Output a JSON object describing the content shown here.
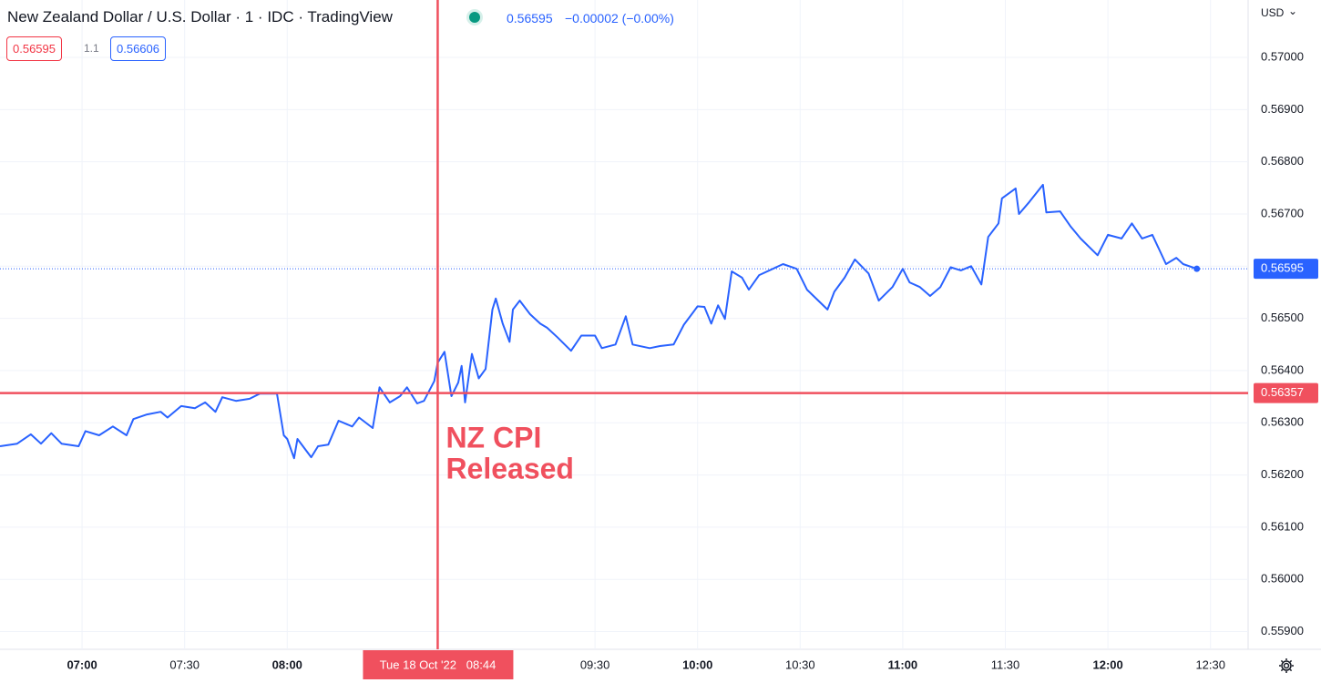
{
  "header": {
    "title": "New Zealand Dollar / U.S. Dollar · 1 · IDC · TradingView",
    "last": 0.56595,
    "change": "−0.00002 (−0.00%)"
  },
  "toolbar": {
    "bid": 0.56595,
    "spread": "1.1",
    "ask": 0.56606,
    "currency": "USD"
  },
  "chart_data": {
    "type": "line",
    "color": "#2962ff",
    "grid": true,
    "x": [
      "06:36",
      "06:41",
      "06:45",
      "06:48",
      "06:51",
      "06:54",
      "06:59",
      "07:01",
      "07:05",
      "07:09",
      "07:13",
      "07:15",
      "07:19",
      "07:23",
      "07:25",
      "07:29",
      "07:33",
      "07:36",
      "07:39",
      "07:41",
      "07:45",
      "07:49",
      "07:52",
      "07:57",
      "07:59",
      "08:00",
      "08:02",
      "08:03",
      "08:07",
      "08:09",
      "08:12",
      "08:15",
      "08:19",
      "08:21",
      "08:25",
      "08:27",
      "08:30",
      "08:33",
      "08:35",
      "08:38",
      "08:40",
      "08:43",
      "08:44",
      "08:46",
      "08:48",
      "08:50",
      "08:51",
      "08:52",
      "08:54",
      "08:56",
      "08:58",
      "09:00",
      "09:01",
      "09:03",
      "09:05",
      "09:06",
      "09:08",
      "09:11",
      "09:14",
      "09:16",
      "09:19",
      "09:23",
      "09:26",
      "09:30",
      "09:32",
      "09:36",
      "09:39",
      "09:41",
      "09:46",
      "09:49",
      "09:53",
      "09:56",
      "10:00",
      "10:02",
      "10:04",
      "10:06",
      "10:08",
      "10:10",
      "10:13",
      "10:15",
      "10:18",
      "10:22",
      "10:25",
      "10:29",
      "10:32",
      "10:38",
      "10:40",
      "10:43",
      "10:46",
      "10:50",
      "10:53",
      "10:57",
      "11:00",
      "11:02",
      "11:05",
      "11:08",
      "11:11",
      "11:14",
      "11:17",
      "11:20",
      "11:23",
      "11:25",
      "11:28",
      "11:29",
      "11:33",
      "11:34",
      "11:37",
      "11:41",
      "11:42",
      "11:46",
      "11:49",
      "11:52",
      "11:57",
      "12:00",
      "12:04",
      "12:07",
      "12:10",
      "12:13",
      "12:17",
      "12:20",
      "12:22",
      "12:26"
    ],
    "values": [
      0.56255,
      0.5626,
      0.56278,
      0.5626,
      0.5628,
      0.5626,
      0.56255,
      0.56284,
      0.56276,
      0.56293,
      0.56276,
      0.56307,
      0.56316,
      0.56321,
      0.5631,
      0.56332,
      0.56328,
      0.56339,
      0.56321,
      0.56349,
      0.56342,
      0.56346,
      0.56356,
      0.56356,
      0.56276,
      0.56269,
      0.56232,
      0.56269,
      0.56234,
      0.56255,
      0.56258,
      0.56304,
      0.56293,
      0.5631,
      0.5629,
      0.56368,
      0.56339,
      0.56351,
      0.56368,
      0.56337,
      0.56342,
      0.5638,
      0.56415,
      0.56436,
      0.56351,
      0.56377,
      0.56409,
      0.56339,
      0.56432,
      0.56385,
      0.56403,
      0.56517,
      0.56538,
      0.5649,
      0.56455,
      0.56517,
      0.56534,
      0.56508,
      0.5649,
      0.56482,
      0.56464,
      0.56438,
      0.56467,
      0.56467,
      0.56443,
      0.5645,
      0.56504,
      0.5645,
      0.56443,
      0.56447,
      0.5645,
      0.56488,
      0.56523,
      0.56522,
      0.5649,
      0.56525,
      0.56499,
      0.5659,
      0.56578,
      0.56555,
      0.56583,
      0.56595,
      0.56604,
      0.56595,
      0.56555,
      0.56517,
      0.56551,
      0.56578,
      0.56613,
      0.56586,
      0.56534,
      0.5656,
      0.56595,
      0.56569,
      0.5656,
      0.56543,
      0.5656,
      0.56598,
      0.56592,
      0.566,
      0.56565,
      0.56656,
      0.56682,
      0.5673,
      0.56749,
      0.567,
      0.56723,
      0.56756,
      0.56703,
      0.56705,
      0.56677,
      0.56653,
      0.56621,
      0.5666,
      0.56653,
      0.56682,
      0.56653,
      0.5666,
      0.56604,
      0.56616,
      0.56604,
      0.56595
    ],
    "xlim": [
      "06:36",
      "12:41"
    ],
    "xticks": [
      "07:00",
      "07:30",
      "08:00",
      "09:30",
      "10:00",
      "10:30",
      "11:00",
      "11:30",
      "12:00",
      "12:30"
    ],
    "ylim": [
      0.55866,
      0.5711
    ],
    "yticks": [
      {
        "value": 0.559,
        "label": "0.55900"
      },
      {
        "value": 0.56,
        "label": "0.56000"
      },
      {
        "value": 0.561,
        "label": "0.56100"
      },
      {
        "value": 0.562,
        "label": "0.56200"
      },
      {
        "value": 0.563,
        "label": "0.56300"
      },
      {
        "value": 0.564,
        "label": "0.56400"
      },
      {
        "value": 0.565,
        "label": "0.56500"
      },
      {
        "value": 0.566,
        "label": "0.56600"
      },
      {
        "value": 0.567,
        "label": "0.56700"
      },
      {
        "value": 0.568,
        "label": "0.56800"
      },
      {
        "value": 0.569,
        "label": "0.56900"
      },
      {
        "value": 0.57,
        "label": "0.57000"
      }
    ],
    "crosshair": {
      "x": "08:44",
      "x_label": "Tue 18 Oct '22   08:44",
      "y": 0.56357
    },
    "annotation": [
      "NZ CPI",
      "Released"
    ]
  }
}
